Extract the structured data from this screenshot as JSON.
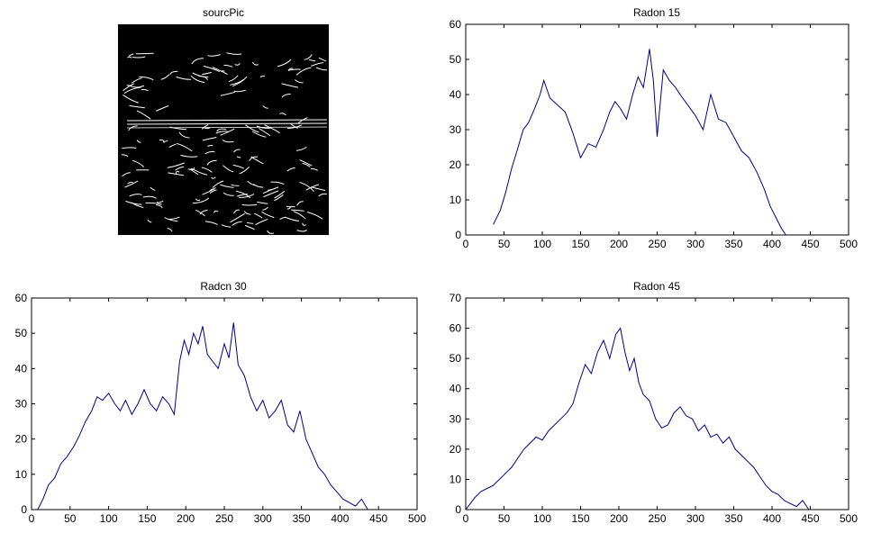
{
  "figure": {
    "image_panel": {
      "title": "sourcPic"
    }
  },
  "chart_data": [
    {
      "type": "line",
      "title": "Radon 15",
      "xlim": [
        0,
        500
      ],
      "ylim": [
        0,
        60
      ],
      "xticks": [
        0,
        50,
        100,
        150,
        200,
        250,
        300,
        350,
        400,
        450,
        500
      ],
      "yticks": [
        0,
        10,
        20,
        30,
        40,
        50,
        60
      ],
      "grid": false,
      "series": [
        {
          "color": "#00008b",
          "x": [
            36,
            45,
            52,
            60,
            67,
            75,
            82,
            90,
            97,
            102,
            110,
            120,
            130,
            140,
            150,
            160,
            170,
            180,
            188,
            195,
            202,
            210,
            218,
            225,
            232,
            240,
            245,
            250,
            258,
            266,
            274,
            280,
            290,
            300,
            310,
            320,
            330,
            340,
            350,
            360,
            370,
            380,
            390,
            398,
            405,
            412,
            418
          ],
          "y": [
            3,
            7,
            12,
            19,
            24,
            30,
            32,
            36,
            40,
            44,
            39,
            37,
            35,
            29,
            22,
            26,
            25,
            30,
            35,
            38,
            36,
            33,
            40,
            45,
            42,
            53,
            44,
            28,
            47,
            44,
            42,
            40,
            37,
            34,
            30,
            40,
            33,
            32,
            28,
            24,
            22,
            18,
            13,
            8,
            5,
            2,
            0
          ]
        }
      ]
    },
    {
      "type": "line",
      "title": "Radcn 30",
      "xlim": [
        0,
        500
      ],
      "ylim": [
        0,
        60
      ],
      "xticks": [
        0,
        50,
        100,
        150,
        200,
        250,
        300,
        350,
        400,
        450,
        500
      ],
      "yticks": [
        0,
        10,
        20,
        30,
        40,
        50,
        60
      ],
      "grid": false,
      "series": [
        {
          "color": "#00008b",
          "x": [
            8,
            15,
            22,
            30,
            38,
            46,
            55,
            62,
            70,
            78,
            85,
            92,
            100,
            108,
            115,
            122,
            130,
            138,
            146,
            154,
            162,
            170,
            178,
            185,
            192,
            198,
            204,
            210,
            216,
            222,
            228,
            235,
            242,
            250,
            256,
            262,
            268,
            276,
            284,
            292,
            300,
            308,
            316,
            324,
            332,
            340,
            348,
            356,
            364,
            372,
            380,
            388,
            396,
            404,
            412,
            420,
            428,
            436
          ],
          "y": [
            0,
            3,
            7,
            9,
            13,
            15,
            18,
            21,
            25,
            28,
            32,
            31,
            33,
            30,
            28,
            31,
            27,
            30,
            34,
            30,
            28,
            32,
            30,
            27,
            42,
            48,
            44,
            50,
            47,
            52,
            44,
            42,
            40,
            47,
            43,
            53,
            41,
            38,
            32,
            28,
            31,
            26,
            28,
            31,
            24,
            22,
            28,
            20,
            16,
            12,
            10,
            7,
            5,
            3,
            2,
            1,
            3,
            0
          ]
        }
      ]
    },
    {
      "type": "line",
      "title": "Radon 45",
      "xlim": [
        0,
        500
      ],
      "ylim": [
        0,
        70
      ],
      "xticks": [
        0,
        50,
        100,
        150,
        200,
        250,
        300,
        350,
        400,
        450,
        500
      ],
      "yticks": [
        0,
        10,
        20,
        30,
        40,
        50,
        60,
        70
      ],
      "grid": false,
      "series": [
        {
          "color": "#00008b",
          "x": [
            0,
            6,
            12,
            20,
            28,
            36,
            44,
            52,
            60,
            68,
            76,
            84,
            92,
            100,
            108,
            116,
            124,
            132,
            140,
            148,
            156,
            164,
            172,
            180,
            188,
            196,
            202,
            208,
            214,
            220,
            226,
            232,
            240,
            248,
            256,
            264,
            272,
            280,
            288,
            296,
            304,
            312,
            320,
            328,
            336,
            344,
            352,
            360,
            368,
            376,
            384,
            392,
            400,
            408,
            416,
            424,
            432,
            440,
            448
          ],
          "y": [
            0,
            2,
            4,
            6,
            7,
            8,
            10,
            12,
            14,
            17,
            20,
            22,
            24,
            23,
            26,
            28,
            30,
            32,
            35,
            42,
            48,
            45,
            52,
            56,
            50,
            58,
            60,
            52,
            46,
            50,
            42,
            38,
            36,
            30,
            27,
            28,
            32,
            34,
            31,
            30,
            26,
            28,
            24,
            25,
            22,
            24,
            20,
            18,
            16,
            14,
            11,
            8,
            6,
            5,
            3,
            2,
            1,
            3,
            0
          ]
        }
      ]
    }
  ]
}
